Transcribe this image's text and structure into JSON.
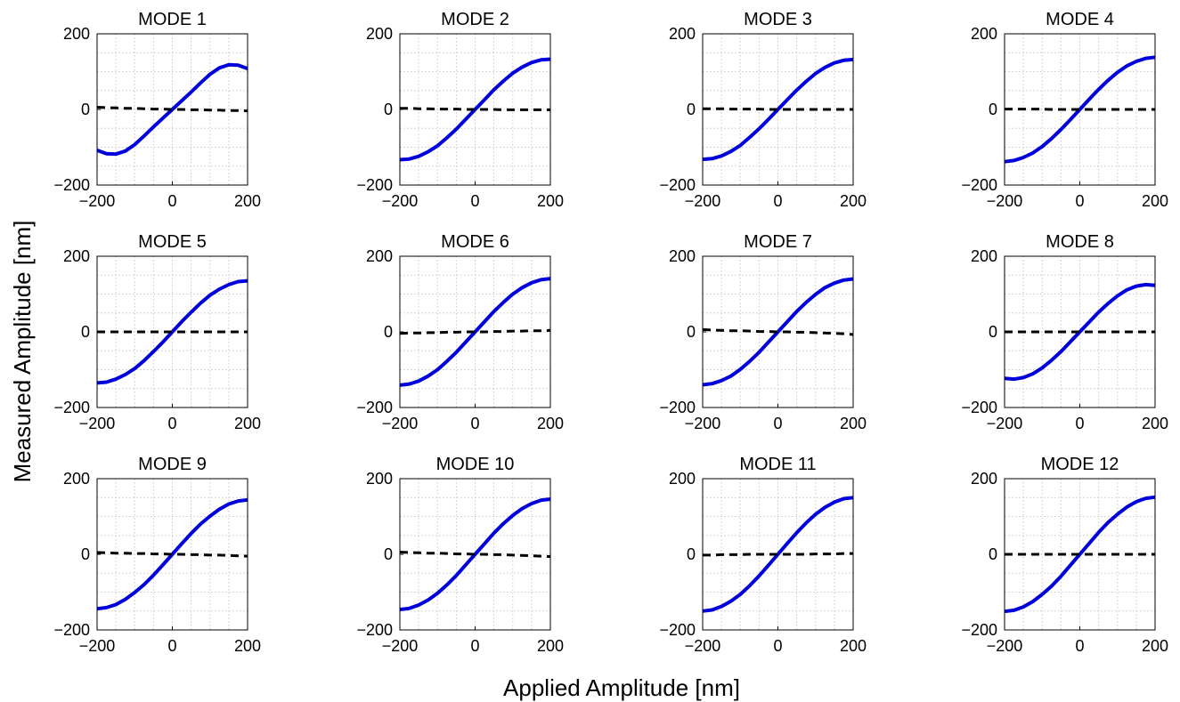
{
  "figure": {
    "xlabel": "Applied Amplitude [nm]",
    "ylabel": "Measured Amplitude [nm]"
  },
  "colors": {
    "measured": "#0000dd",
    "crosstalk": "#000000",
    "grid": "#c8c8c8"
  },
  "chart_data": [
    {
      "type": "line",
      "title": "MODE 1",
      "xlim": [
        -200,
        200
      ],
      "ylim": [
        -200,
        200
      ],
      "xticks": [
        -200,
        0,
        200
      ],
      "yticks": [
        -200,
        0,
        200
      ],
      "grid": true,
      "x": [
        -200,
        -175,
        -150,
        -125,
        -100,
        -75,
        -50,
        -25,
        0,
        25,
        50,
        75,
        100,
        125,
        150,
        175,
        200
      ],
      "series": [
        {
          "values": [
            -108,
            -117,
            -118,
            -110,
            -93,
            -70,
            -46,
            -23,
            0,
            23,
            46,
            70,
            93,
            110,
            118,
            117,
            108
          ]
        },
        {
          "values": [
            6,
            5,
            4,
            3,
            3,
            2,
            1,
            1,
            0,
            0,
            -1,
            -1,
            -2,
            -2,
            -3,
            -3,
            -4
          ]
        }
      ]
    },
    {
      "type": "line",
      "title": "MODE 2",
      "xlim": [
        -200,
        200
      ],
      "ylim": [
        -200,
        200
      ],
      "xticks": [
        -200,
        0,
        200
      ],
      "yticks": [
        -200,
        0,
        200
      ],
      "grid": true,
      "x": [
        -200,
        -175,
        -150,
        -125,
        -100,
        -75,
        -50,
        -25,
        0,
        25,
        50,
        75,
        100,
        125,
        150,
        175,
        200
      ],
      "series": [
        {
          "values": [
            -133,
            -131,
            -124,
            -112,
            -96,
            -75,
            -52,
            -26,
            0,
            26,
            52,
            75,
            96,
            112,
            124,
            131,
            133
          ]
        },
        {
          "values": [
            3,
            3,
            2,
            2,
            1,
            1,
            1,
            0,
            0,
            0,
            0,
            -1,
            -1,
            -1,
            -1,
            -1,
            -1
          ]
        }
      ]
    },
    {
      "type": "line",
      "title": "MODE 3",
      "xlim": [
        -200,
        200
      ],
      "ylim": [
        -200,
        200
      ],
      "xticks": [
        -200,
        0,
        200
      ],
      "yticks": [
        -200,
        0,
        200
      ],
      "grid": true,
      "x": [
        -200,
        -175,
        -150,
        -125,
        -100,
        -75,
        -50,
        -25,
        0,
        25,
        50,
        75,
        100,
        125,
        150,
        175,
        200
      ],
      "series": [
        {
          "values": [
            -132,
            -130,
            -123,
            -111,
            -95,
            -74,
            -51,
            -26,
            0,
            26,
            51,
            74,
            95,
            111,
            123,
            130,
            132
          ]
        },
        {
          "values": [
            2,
            2,
            2,
            1,
            1,
            1,
            1,
            0,
            0,
            0,
            0,
            0,
            0,
            0,
            0,
            0,
            0
          ]
        }
      ]
    },
    {
      "type": "line",
      "title": "MODE 4",
      "xlim": [
        -200,
        200
      ],
      "ylim": [
        -200,
        200
      ],
      "xticks": [
        -200,
        0,
        200
      ],
      "yticks": [
        -200,
        0,
        200
      ],
      "grid": true,
      "x": [
        -200,
        -175,
        -150,
        -125,
        -100,
        -75,
        -50,
        -25,
        0,
        25,
        50,
        75,
        100,
        125,
        150,
        175,
        200
      ],
      "series": [
        {
          "values": [
            -138,
            -135,
            -127,
            -115,
            -98,
            -77,
            -53,
            -27,
            0,
            27,
            53,
            77,
            98,
            115,
            127,
            135,
            138
          ]
        },
        {
          "values": [
            1,
            1,
            1,
            1,
            1,
            0,
            0,
            0,
            0,
            0,
            0,
            0,
            0,
            0,
            0,
            0,
            0
          ]
        }
      ]
    },
    {
      "type": "line",
      "title": "MODE 5",
      "xlim": [
        -200,
        200
      ],
      "ylim": [
        -200,
        200
      ],
      "xticks": [
        -200,
        0,
        200
      ],
      "yticks": [
        -200,
        0,
        200
      ],
      "grid": true,
      "x": [
        -200,
        -175,
        -150,
        -125,
        -100,
        -75,
        -50,
        -25,
        0,
        25,
        50,
        75,
        100,
        125,
        150,
        175,
        200
      ],
      "series": [
        {
          "values": [
            -135,
            -133,
            -125,
            -113,
            -97,
            -76,
            -52,
            -27,
            0,
            27,
            52,
            76,
            97,
            113,
            125,
            133,
            135
          ]
        },
        {
          "values": [
            0,
            0,
            0,
            0,
            0,
            0,
            0,
            0,
            0,
            0,
            0,
            0,
            0,
            0,
            0,
            0,
            0
          ]
        }
      ]
    },
    {
      "type": "line",
      "title": "MODE 6",
      "xlim": [
        -200,
        200
      ],
      "ylim": [
        -200,
        200
      ],
      "xticks": [
        -200,
        0,
        200
      ],
      "yticks": [
        -200,
        0,
        200
      ],
      "grid": true,
      "x": [
        -200,
        -175,
        -150,
        -125,
        -100,
        -75,
        -50,
        -25,
        0,
        25,
        50,
        75,
        100,
        125,
        150,
        175,
        200
      ],
      "series": [
        {
          "values": [
            -141,
            -138,
            -130,
            -117,
            -100,
            -78,
            -54,
            -27,
            0,
            27,
            54,
            78,
            100,
            117,
            130,
            138,
            141
          ]
        },
        {
          "values": [
            -4,
            -3,
            -3,
            -2,
            -2,
            -1,
            -1,
            0,
            0,
            0,
            1,
            1,
            2,
            2,
            3,
            3,
            4
          ]
        }
      ]
    },
    {
      "type": "line",
      "title": "MODE 7",
      "xlim": [
        -200,
        200
      ],
      "ylim": [
        -200,
        200
      ],
      "xticks": [
        -200,
        0,
        200
      ],
      "yticks": [
        -200,
        0,
        200
      ],
      "grid": true,
      "x": [
        -200,
        -175,
        -150,
        -125,
        -100,
        -75,
        -50,
        -25,
        0,
        25,
        50,
        75,
        100,
        125,
        150,
        175,
        200
      ],
      "series": [
        {
          "values": [
            -140,
            -137,
            -129,
            -117,
            -99,
            -78,
            -54,
            -27,
            0,
            27,
            54,
            78,
            99,
            117,
            129,
            137,
            140
          ]
        },
        {
          "values": [
            6,
            5,
            4,
            3,
            3,
            2,
            1,
            1,
            0,
            0,
            -1,
            -1,
            -2,
            -3,
            -4,
            -5,
            -7
          ]
        }
      ]
    },
    {
      "type": "line",
      "title": "MODE 8",
      "xlim": [
        -200,
        200
      ],
      "ylim": [
        -200,
        200
      ],
      "xticks": [
        -200,
        0,
        200
      ],
      "yticks": [
        -200,
        0,
        200
      ],
      "grid": true,
      "x": [
        -200,
        -175,
        -150,
        -125,
        -100,
        -75,
        -50,
        -25,
        0,
        25,
        50,
        75,
        100,
        125,
        150,
        175,
        200
      ],
      "series": [
        {
          "values": [
            -123,
            -125,
            -121,
            -111,
            -95,
            -75,
            -52,
            -26,
            0,
            26,
            52,
            75,
            95,
            111,
            121,
            125,
            123
          ]
        },
        {
          "values": [
            0,
            0,
            0,
            0,
            0,
            0,
            0,
            0,
            0,
            0,
            0,
            0,
            0,
            0,
            0,
            0,
            0
          ]
        }
      ]
    },
    {
      "type": "line",
      "title": "MODE 9",
      "xlim": [
        -200,
        200
      ],
      "ylim": [
        -200,
        200
      ],
      "xticks": [
        -200,
        0,
        200
      ],
      "yticks": [
        -200,
        0,
        200
      ],
      "grid": true,
      "x": [
        -200,
        -175,
        -150,
        -125,
        -100,
        -75,
        -50,
        -25,
        0,
        25,
        50,
        75,
        100,
        125,
        150,
        175,
        200
      ],
      "series": [
        {
          "values": [
            -144,
            -141,
            -133,
            -119,
            -101,
            -80,
            -55,
            -28,
            0,
            28,
            55,
            80,
            101,
            119,
            133,
            141,
            144
          ]
        },
        {
          "values": [
            5,
            4,
            3,
            3,
            2,
            2,
            1,
            1,
            0,
            0,
            -1,
            -1,
            -2,
            -2,
            -3,
            -4,
            -5
          ]
        }
      ]
    },
    {
      "type": "line",
      "title": "MODE 10",
      "xlim": [
        -200,
        200
      ],
      "ylim": [
        -200,
        200
      ],
      "xticks": [
        -200,
        0,
        200
      ],
      "yticks": [
        -200,
        0,
        200
      ],
      "grid": true,
      "x": [
        -200,
        -175,
        -150,
        -125,
        -100,
        -75,
        -50,
        -25,
        0,
        25,
        50,
        75,
        100,
        125,
        150,
        175,
        200
      ],
      "series": [
        {
          "values": [
            -146,
            -143,
            -134,
            -121,
            -103,
            -81,
            -56,
            -28,
            0,
            28,
            56,
            81,
            103,
            121,
            134,
            143,
            146
          ]
        },
        {
          "values": [
            6,
            5,
            4,
            3,
            3,
            2,
            1,
            1,
            0,
            0,
            -1,
            -1,
            -2,
            -3,
            -4,
            -5,
            -6
          ]
        }
      ]
    },
    {
      "type": "line",
      "title": "MODE 11",
      "xlim": [
        -200,
        200
      ],
      "ylim": [
        -200,
        200
      ],
      "xticks": [
        -200,
        0,
        200
      ],
      "yticks": [
        -200,
        0,
        200
      ],
      "grid": true,
      "x": [
        -200,
        -175,
        -150,
        -125,
        -100,
        -75,
        -50,
        -25,
        0,
        25,
        50,
        75,
        100,
        125,
        150,
        175,
        200
      ],
      "series": [
        {
          "values": [
            -150,
            -147,
            -138,
            -124,
            -106,
            -83,
            -57,
            -29,
            0,
            29,
            57,
            83,
            106,
            124,
            138,
            147,
            150
          ]
        },
        {
          "values": [
            -2,
            -2,
            -1,
            -1,
            -1,
            0,
            0,
            0,
            0,
            0,
            0,
            0,
            1,
            1,
            1,
            2,
            2
          ]
        }
      ]
    },
    {
      "type": "line",
      "title": "MODE 12",
      "xlim": [
        -200,
        200
      ],
      "ylim": [
        -200,
        200
      ],
      "xticks": [
        -200,
        0,
        200
      ],
      "yticks": [
        -200,
        0,
        200
      ],
      "grid": true,
      "x": [
        -200,
        -175,
        -150,
        -125,
        -100,
        -75,
        -50,
        -25,
        0,
        25,
        50,
        75,
        100,
        125,
        150,
        175,
        200
      ],
      "series": [
        {
          "values": [
            -151,
            -148,
            -139,
            -125,
            -106,
            -84,
            -58,
            -29,
            0,
            29,
            58,
            84,
            106,
            125,
            139,
            148,
            151
          ]
        },
        {
          "values": [
            0,
            0,
            0,
            0,
            0,
            0,
            0,
            0,
            0,
            0,
            0,
            0,
            0,
            0,
            0,
            0,
            0
          ]
        }
      ]
    }
  ]
}
